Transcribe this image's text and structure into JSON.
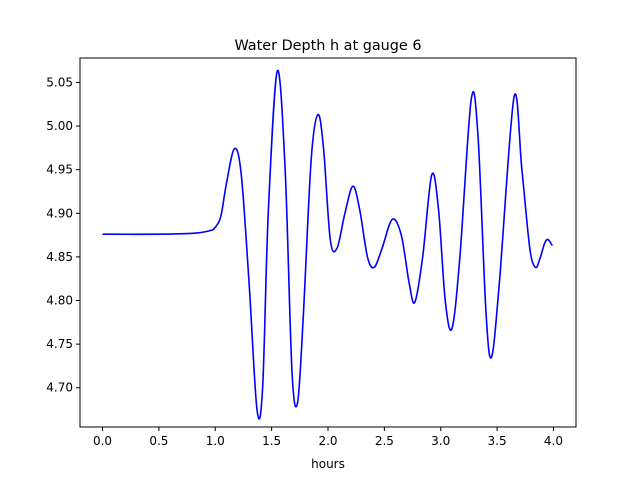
{
  "chart_data": {
    "type": "line",
    "title": "Water Depth h at gauge 6",
    "xlabel": "hours",
    "ylabel": "",
    "xlim": [
      -0.2,
      4.2
    ],
    "ylim": [
      4.655,
      5.078
    ],
    "xticks": [
      0.0,
      0.5,
      1.0,
      1.5,
      2.0,
      2.5,
      3.0,
      3.5,
      4.0
    ],
    "xtick_labels": [
      "0.0",
      "0.5",
      "1.0",
      "1.5",
      "2.0",
      "2.5",
      "3.0",
      "3.5",
      "4.0"
    ],
    "yticks": [
      4.7,
      4.75,
      4.8,
      4.85,
      4.9,
      4.95,
      5.0,
      5.05
    ],
    "ytick_labels": [
      "4.70",
      "4.75",
      "4.80",
      "4.85",
      "4.90",
      "4.95",
      "5.00",
      "5.05"
    ],
    "grid": false,
    "series": [
      {
        "color": "#0000ff",
        "x": [
          0.0,
          0.5,
          0.8,
          0.95,
          1.0,
          1.05,
          1.1,
          1.17,
          1.23,
          1.3,
          1.37,
          1.42,
          1.47,
          1.55,
          1.62,
          1.68,
          1.73,
          1.78,
          1.85,
          1.91,
          1.96,
          2.02,
          2.08,
          2.15,
          2.22,
          2.28,
          2.35,
          2.41,
          2.48,
          2.57,
          2.65,
          2.72,
          2.77,
          2.84,
          2.92,
          2.98,
          3.04,
          3.1,
          3.17,
          3.27,
          3.33,
          3.4,
          3.45,
          3.52,
          3.65,
          3.72,
          3.79,
          3.84,
          3.88,
          3.92,
          3.95,
          3.99
        ],
        "y": [
          4.876,
          4.876,
          4.877,
          4.88,
          4.884,
          4.897,
          4.935,
          4.974,
          4.945,
          4.82,
          4.675,
          4.7,
          4.9,
          5.063,
          4.95,
          4.72,
          4.683,
          4.78,
          4.96,
          5.013,
          4.975,
          4.87,
          4.86,
          4.9,
          4.931,
          4.905,
          4.85,
          4.838,
          4.86,
          4.893,
          4.875,
          4.82,
          4.798,
          4.85,
          4.944,
          4.905,
          4.8,
          4.768,
          4.85,
          5.03,
          4.99,
          4.79,
          4.735,
          4.82,
          5.033,
          4.95,
          4.86,
          4.838,
          4.848,
          4.865,
          4.87,
          4.863
        ]
      }
    ]
  }
}
